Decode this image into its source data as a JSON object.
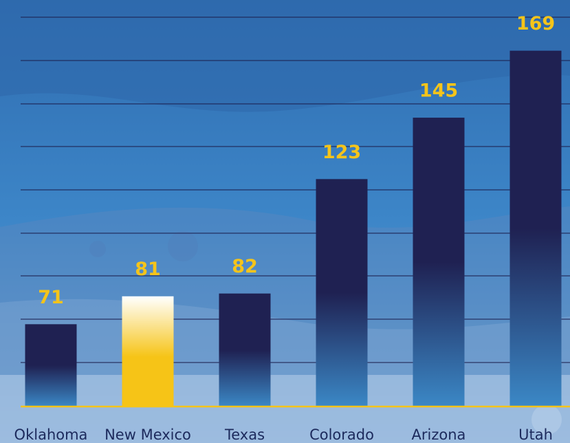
{
  "chart_data": {
    "type": "bar",
    "categories": [
      "Oklahoma",
      "New Mexico",
      "Texas",
      "Colorado",
      "Arizona",
      "Utah"
    ],
    "values": [
      71,
      81,
      82,
      123,
      145,
      169
    ],
    "colors": [
      "#1f2152",
      "#f6c417",
      "#1f2152",
      "#1f2152",
      "#1f2152",
      "#1f2152"
    ],
    "ylim": [
      41.5,
      181
    ],
    "grid": true
  }
}
